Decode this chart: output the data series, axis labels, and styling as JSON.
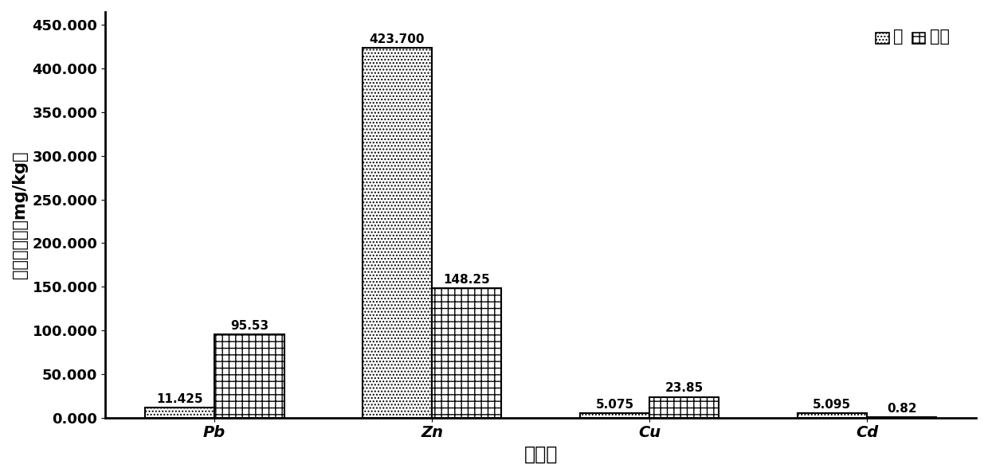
{
  "categories": [
    "Pb",
    "Zn",
    "Cu",
    "Cd"
  ],
  "stem_values": [
    11.425,
    423.7,
    5.075,
    5.095
  ],
  "soil_values": [
    95.53,
    148.25,
    23.85,
    0.82
  ],
  "stem_labels": [
    "11.425",
    "423.700",
    "5.075",
    "5.095"
  ],
  "soil_labels": [
    "95.53",
    "148.25",
    "23.85",
    "0.82"
  ],
  "ylabel": "重金属含量（mg/kg）",
  "xlabel": "重金属",
  "ylim": [
    0,
    465
  ],
  "yticks": [
    0.0,
    50.0,
    100.0,
    150.0,
    200.0,
    250.0,
    300.0,
    350.0,
    400.0,
    450.0
  ],
  "ytick_labels": [
    "0.000",
    "50.000",
    "100.000",
    "150.000",
    "200.000",
    "250.000",
    "300.000",
    "350.000",
    "400.000",
    "450.000"
  ],
  "legend_stem": "茎",
  "legend_soil": "土壤",
  "bar_width": 0.32,
  "stem_hatch": "....",
  "soil_hatch": "++",
  "bg_color": "white",
  "label_font_size": 11,
  "axis_font_size": 15,
  "legend_font_size": 15,
  "tick_font_size": 13
}
